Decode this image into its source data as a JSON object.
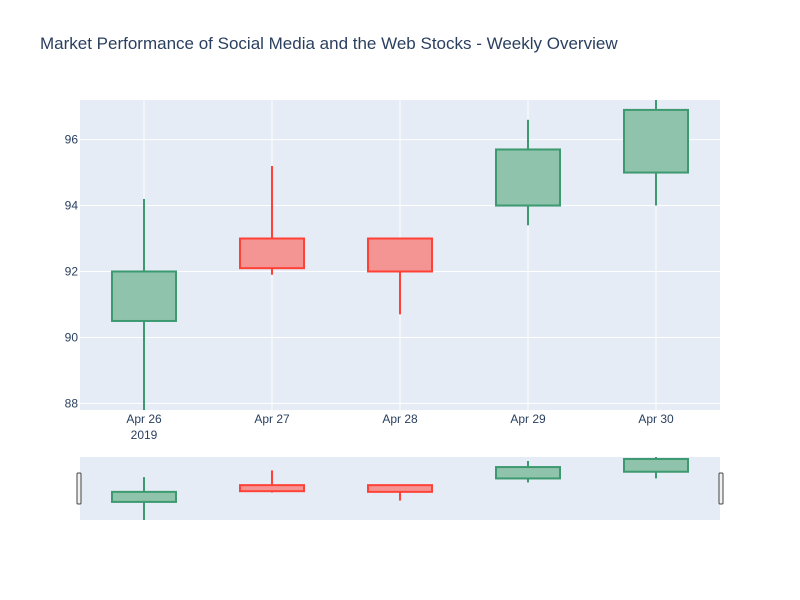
{
  "chart_data": {
    "type": "candlestick",
    "title": "Market Performance of Social Media and the Web Stocks - Weekly Overview",
    "xlabel": "",
    "ylabel": "",
    "x_tick_labels": [
      "Apr 26",
      "Apr 27",
      "Apr 28",
      "Apr 29",
      "Apr 30"
    ],
    "x_year_label": "2019",
    "yticks": [
      88,
      90,
      92,
      94,
      96
    ],
    "ylim": [
      87.8,
      97.2
    ],
    "candles": [
      {
        "date": "Apr 26",
        "open": 90.5,
        "high": 94.2,
        "low": 87.8,
        "close": 92.0
      },
      {
        "date": "Apr 27",
        "open": 93.0,
        "high": 95.2,
        "low": 91.9,
        "close": 92.1
      },
      {
        "date": "Apr 28",
        "open": 93.0,
        "high": 93.0,
        "low": 90.7,
        "close": 92.0
      },
      {
        "date": "Apr 29",
        "open": 94.0,
        "high": 96.6,
        "low": 93.4,
        "close": 95.7
      },
      {
        "date": "Apr 30",
        "open": 95.0,
        "high": 97.2,
        "low": 94.0,
        "close": 96.9
      }
    ],
    "increasing_color": "#3d9970",
    "increasing_fill": "#8fc3ac",
    "decreasing_color": "#ff4136",
    "decreasing_fill": "#f59593",
    "plot_bg": "#e5ecf6",
    "grid": true,
    "rangeslider": true
  }
}
